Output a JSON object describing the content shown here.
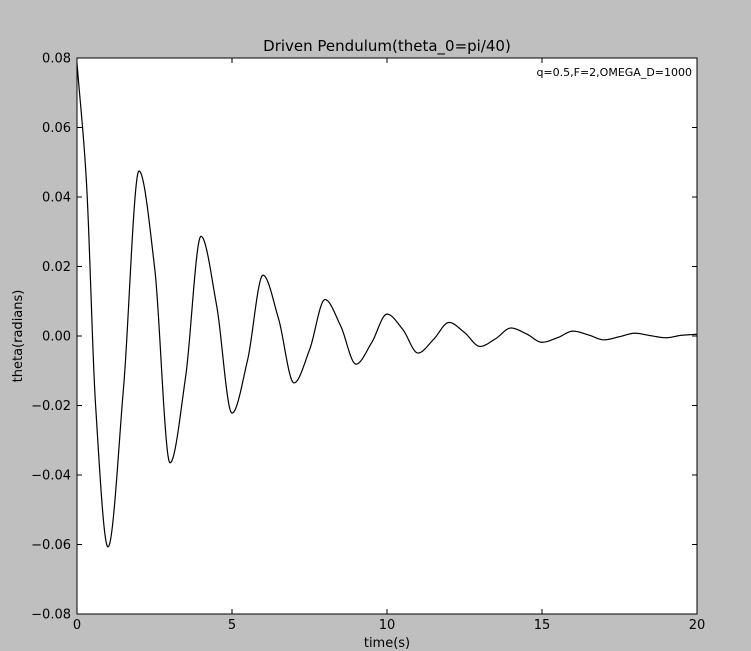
{
  "chart_data": {
    "type": "line",
    "title": "Driven Pendulum(theta_0=pi/40)",
    "xlabel": "time(s)",
    "ylabel": "theta(radians)",
    "xlim": [
      0,
      20
    ],
    "ylim": [
      -0.08,
      0.08
    ],
    "xticks": [
      0,
      5,
      10,
      15,
      20
    ],
    "yticks": [
      0.08,
      0.06,
      0.04,
      0.02,
      0.0,
      -0.02,
      -0.04,
      -0.06,
      -0.08
    ],
    "xtick_labels": [
      "0",
      "5",
      "10",
      "15",
      "20"
    ],
    "ytick_labels": [
      "0.08",
      "0.06",
      "0.04",
      "0.02",
      "0.00",
      "−0.02",
      "−0.04",
      "−0.06",
      "−0.08"
    ],
    "grid": false,
    "legend": {
      "location": "top-right",
      "entries": [
        "q=0.5,F=2,OMEGA_D=1000"
      ]
    },
    "series": [
      {
        "name": "q=0.5,F=2,OMEGA_D=1000",
        "color": "#000000",
        "x": [
          0,
          0.3,
          0.6,
          1.0,
          1.5,
          2.0,
          2.5,
          3.0,
          3.5,
          4.0,
          4.5,
          5.0,
          5.5,
          6.0,
          6.5,
          7.0,
          7.5,
          8.0,
          8.5,
          9.0,
          9.5,
          10.0,
          10.5,
          11.0,
          11.5,
          12.0,
          12.5,
          13.0,
          13.5,
          14.0,
          14.5,
          15.0,
          15.5,
          16.0,
          16.5,
          17.0,
          17.5,
          18.0,
          18.5,
          19.0,
          19.5,
          20.0
        ],
        "y": [
          0.0785,
          0.045,
          -0.02,
          -0.0607,
          -0.015,
          0.0475,
          0.02,
          -0.0365,
          -0.012,
          0.0287,
          0.009,
          -0.0222,
          -0.007,
          0.0175,
          0.005,
          -0.0135,
          -0.004,
          0.0105,
          0.003,
          -0.0081,
          -0.002,
          0.0063,
          0.002,
          -0.0049,
          -0.001,
          0.0039,
          0.001,
          -0.003,
          -0.0008,
          0.0023,
          0.0006,
          -0.0018,
          -0.0005,
          0.0014,
          0.0003,
          -0.0011,
          -0.0002,
          0.0008,
          0.0001,
          -0.0005,
          0.0002,
          0.0005
        ]
      }
    ]
  }
}
